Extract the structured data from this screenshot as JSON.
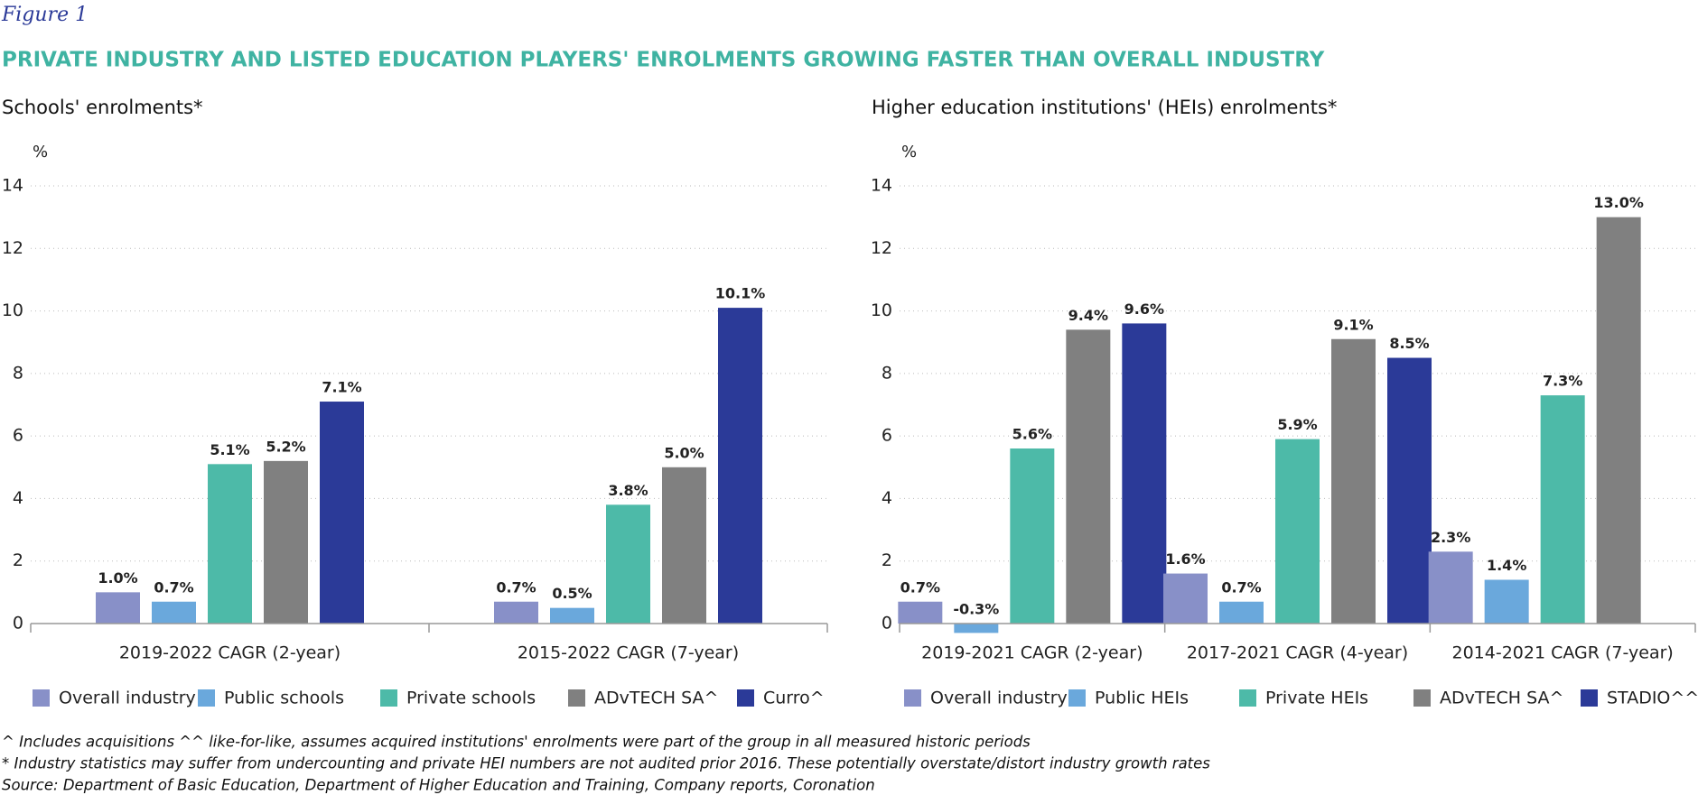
{
  "figure_label": "Figure 1",
  "title": "PRIVATE INDUSTRY AND LISTED EDUCATION PLAYERS' ENROLMENTS GROWING FASTER THAN OVERALL INDUSTRY",
  "footnotes": [
    "^ Includes acquisitions ^^ like-for-like, assumes acquired institutions' enrolments were part of the group in all measured historic periods",
    "* Industry statistics may suffer from undercounting and private HEI numbers are not audited prior 2016. These potentially overstate/distort industry growth rates",
    "Source: Department of Basic Education, Department of Higher Education and Training, Company reports, Coronation"
  ],
  "chart_data": [
    {
      "type": "bar",
      "title": "Schools' enrolments*",
      "ylabel": "%",
      "categories": [
        "2019-2022 CAGR (2-year)",
        "2015-2022 CAGR (7-year)"
      ],
      "series": [
        {
          "name": "Overall industry",
          "color": "#8890c8",
          "values": [
            1.0,
            0.7
          ],
          "value_labels": [
            "1.0%",
            "0.7%"
          ]
        },
        {
          "name": "Public schools",
          "color": "#6aa8dc",
          "values": [
            0.7,
            0.5
          ],
          "value_labels": [
            "0.7%",
            "0.5%"
          ]
        },
        {
          "name": "Private schools",
          "color": "#4dbaa8",
          "values": [
            5.1,
            3.8
          ],
          "value_labels": [
            "5.1%",
            "3.8%"
          ]
        },
        {
          "name": "ADvTECH SA^",
          "color": "#808080",
          "values": [
            5.2,
            5.0
          ],
          "value_labels": [
            "5.2%",
            "5.0%"
          ]
        },
        {
          "name": "Curro^",
          "color": "#2b3a98",
          "values": [
            7.1,
            10.1
          ],
          "value_labels": [
            "7.1%",
            "10.1%"
          ]
        }
      ],
      "ylim": [
        0,
        14
      ],
      "yticks": [
        0,
        2,
        4,
        6,
        8,
        10,
        12,
        14
      ],
      "grid": true
    },
    {
      "type": "bar",
      "title": "Higher education institutions' (HEIs) enrolments*",
      "ylabel": "%",
      "categories": [
        "2019-2021 CAGR (2-year)",
        "2017-2021 CAGR (4-year)",
        "2014-2021 CAGR (7-year)"
      ],
      "series": [
        {
          "name": "Overall industry",
          "color": "#8890c8",
          "values": [
            0.7,
            1.6,
            2.3
          ],
          "value_labels": [
            "0.7%",
            "1.6%",
            "2.3%"
          ]
        },
        {
          "name": "Public HEIs",
          "color": "#6aa8dc",
          "values": [
            -0.3,
            0.7,
            1.4
          ],
          "value_labels": [
            "-0.3%",
            "0.7%",
            "1.4%"
          ]
        },
        {
          "name": "Private HEIs",
          "color": "#4dbaa8",
          "values": [
            5.6,
            5.9,
            7.3
          ],
          "value_labels": [
            "5.6%",
            "5.9%",
            "7.3%"
          ]
        },
        {
          "name": "ADvTECH SA^",
          "color": "#808080",
          "values": [
            9.4,
            9.1,
            13.0
          ],
          "value_labels": [
            "9.4%",
            "9.1%",
            "13.0%"
          ]
        },
        {
          "name": "STADIO^^",
          "color": "#2b3a98",
          "values": [
            9.6,
            8.5,
            null
          ],
          "value_labels": [
            "9.6%",
            "8.5%",
            null
          ]
        }
      ],
      "ylim": [
        0,
        14
      ],
      "yticks": [
        0,
        2,
        4,
        6,
        8,
        10,
        12,
        14
      ],
      "grid": true
    }
  ]
}
